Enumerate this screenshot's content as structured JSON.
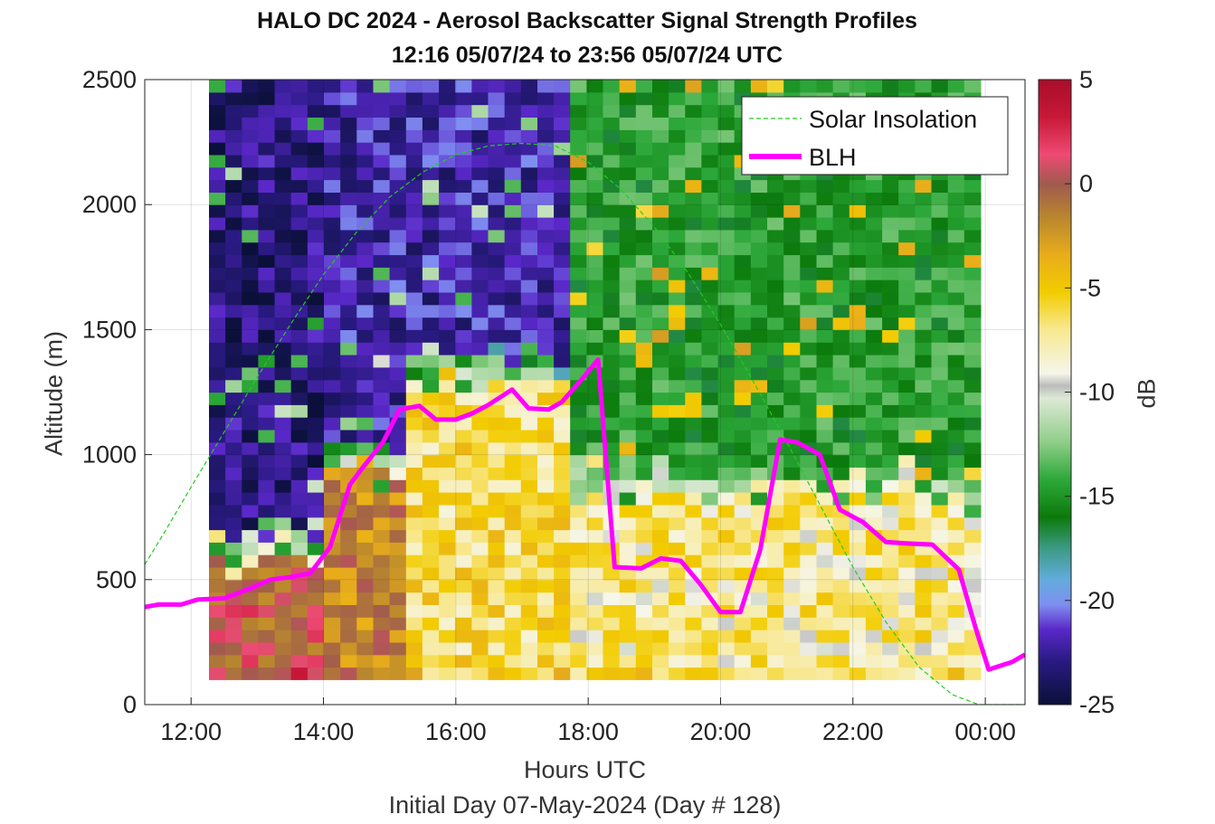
{
  "chart_data": {
    "type": "heatmap",
    "title": "HALO DC 2024 - Aerosol Backscatter Signal Strength Profiles",
    "subtitle": "12:16 05/07/24 to 23:56 05/07/24  UTC",
    "xlabel": "Hours UTC",
    "footer": "Initial Day 07-May-2024 (Day # 128)",
    "ylabel": "Altitude (m)",
    "colorbar_label": "dB",
    "x_range_hours": [
      11.3,
      24.6
    ],
    "x_ticks": [
      12,
      14,
      16,
      18,
      20,
      22,
      24
    ],
    "x_tick_labels": [
      "12:00",
      "14:00",
      "16:00",
      "18:00",
      "20:00",
      "22:00",
      "00:00"
    ],
    "ylim": [
      0,
      2500
    ],
    "y_ticks": [
      0,
      500,
      1000,
      1500,
      2000,
      2500
    ],
    "y_tick_labels": [
      "0",
      "500",
      "1000",
      "1500",
      "2000",
      "2500"
    ],
    "colorbar_range": [
      -25,
      5
    ],
    "colorbar_ticks": [
      5,
      0,
      -5,
      -10,
      -15,
      -20,
      -25
    ],
    "colorbar_tick_labels": [
      "5",
      "0",
      "-5",
      "-10",
      "-15",
      "-20",
      "-25"
    ],
    "grid": true,
    "legend_position": "top-right",
    "heatmap": {
      "t_start_hours": 12.27,
      "t_end_hours": 23.93,
      "alt_start_m": 100,
      "alt_end_m": 2500,
      "alt_bin_m": 50,
      "regimes": [
        {
          "t_from": 12.27,
          "t_to": 14.0,
          "description_db": {
            "surface_layer_top_m": 550,
            "below": 0,
            "above": -23
          }
        },
        {
          "t_from": 14.0,
          "t_to": 15.2,
          "description_db": {
            "surface_layer_top_m": 900,
            "below": -2,
            "above": -22
          }
        },
        {
          "t_from": 15.2,
          "t_to": 17.6,
          "description_db": {
            "surface_layer_top_m": 1250,
            "below": -7,
            "above": -22
          }
        },
        {
          "t_from": 17.6,
          "t_to": 23.93,
          "description_db": {
            "surface_layer_top_m": 800,
            "below": -8,
            "above": -15
          }
        }
      ]
    },
    "series": [
      {
        "name": "Solar Insolation",
        "color": "#22cc22",
        "style": "dashed",
        "x": [
          11.3,
          11.6,
          12.0,
          12.5,
          13.0,
          13.5,
          14.0,
          14.5,
          15.0,
          15.5,
          16.0,
          16.5,
          17.0,
          17.5,
          18.0,
          18.5,
          19.0,
          19.5,
          20.0,
          20.5,
          21.0,
          21.5,
          22.0,
          22.5,
          23.0,
          23.5,
          23.9,
          24.0,
          24.6
        ],
        "y": [
          560,
          690,
          870,
          1090,
          1310,
          1520,
          1720,
          1890,
          2030,
          2130,
          2200,
          2235,
          2245,
          2235,
          2170,
          2060,
          1910,
          1730,
          1520,
          1290,
          1050,
          800,
          550,
          330,
          150,
          40,
          0,
          0,
          0
        ]
      },
      {
        "name": "BLH",
        "color": "#ff00ff",
        "style": "solid",
        "x": [
          11.3,
          11.5,
          11.85,
          12.1,
          12.5,
          12.85,
          13.2,
          13.5,
          13.8,
          14.1,
          14.4,
          14.6,
          14.9,
          15.15,
          15.45,
          15.7,
          16.0,
          16.25,
          16.5,
          16.85,
          17.1,
          17.4,
          17.6,
          17.9,
          18.15,
          18.4,
          18.8,
          19.1,
          19.4,
          19.7,
          20.0,
          20.3,
          20.6,
          20.9,
          21.15,
          21.5,
          21.8,
          22.15,
          22.5,
          22.8,
          23.2,
          23.6,
          23.85,
          24.05,
          24.4,
          24.6
        ],
        "y": [
          390,
          400,
          400,
          420,
          425,
          460,
          500,
          510,
          525,
          630,
          880,
          950,
          1050,
          1180,
          1195,
          1140,
          1140,
          1165,
          1200,
          1260,
          1185,
          1180,
          1210,
          1300,
          1380,
          550,
          545,
          585,
          575,
          480,
          370,
          370,
          620,
          1060,
          1050,
          1000,
          780,
          730,
          650,
          645,
          640,
          540,
          310,
          140,
          170,
          200
        ]
      }
    ]
  }
}
